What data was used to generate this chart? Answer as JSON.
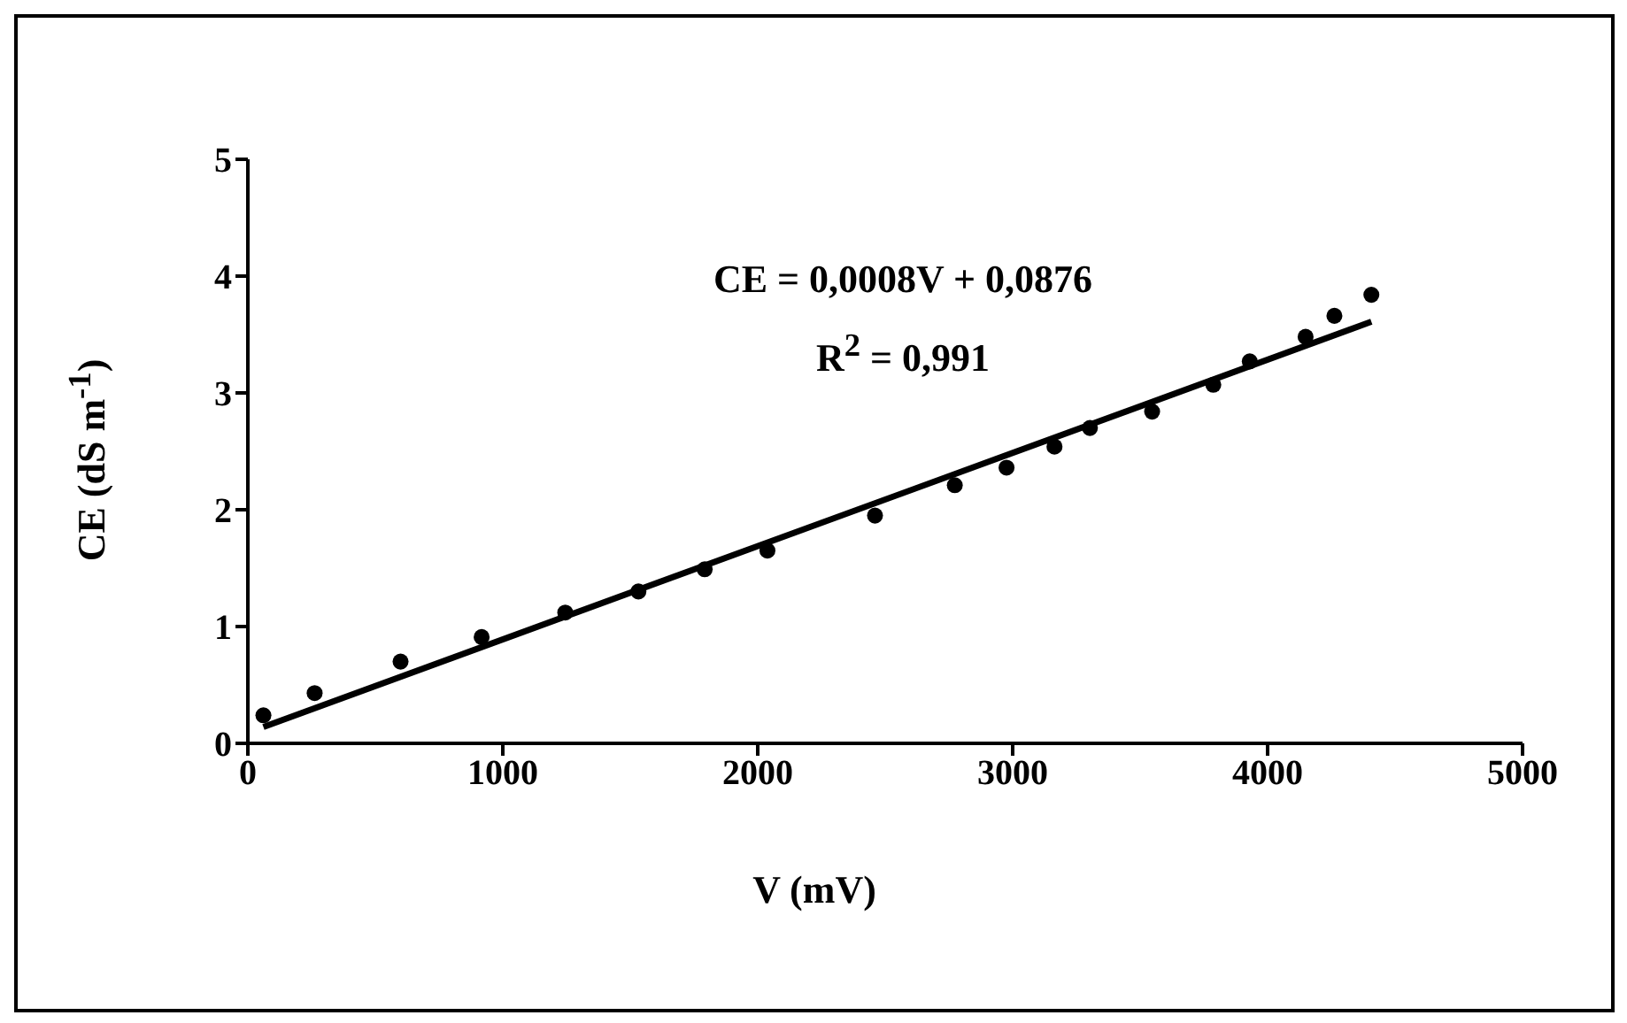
{
  "chart_data": {
    "type": "scatter",
    "xlabel": "V (mV)",
    "ylabel": "CE (dS m$^{-1}$)",
    "xlim": [
      0,
      5000
    ],
    "xticks": [
      0,
      1000,
      2000,
      3000,
      4000,
      5000
    ],
    "ylim": [
      0,
      5
    ],
    "yticks": [
      0,
      1,
      2,
      3,
      4,
      5
    ],
    "grid": false,
    "annotations": [
      "CE = 0,0008V + 0,0876",
      "R$^{2}$ = 0,991"
    ],
    "series": [
      {
        "color": "#000000",
        "marker": "circle",
        "x": [
          61,
          262,
          599,
          917,
          1245,
          1532,
          1792,
          2038,
          2460,
          2773,
          2976,
          3164,
          3303,
          3547,
          3787,
          3930,
          4149,
          4262,
          4407
        ],
        "values": [
          0.24,
          0.43,
          0.7,
          0.91,
          1.12,
          1.3,
          1.49,
          1.65,
          1.95,
          2.21,
          2.36,
          2.54,
          2.7,
          2.84,
          3.07,
          3.27,
          3.48,
          3.66,
          3.84
        ]
      },
      {
        "type": "line",
        "color": "#000000",
        "line_style": "solid",
        "x": [
          61,
          4407
        ],
        "values": [
          0.14,
          3.61
        ]
      }
    ]
  }
}
